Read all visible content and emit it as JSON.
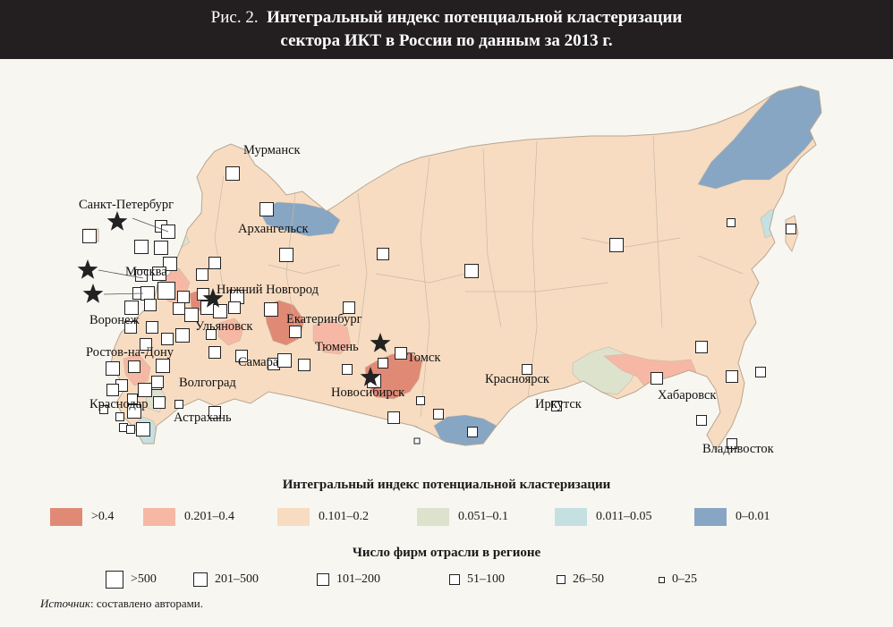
{
  "figure": {
    "prefix": "Рис. 2.",
    "title_line1": "Интегральный индекс потенциальной кластеризации",
    "title_line2": "сектора ИКТ в России по данным за 2013 г."
  },
  "map": {
    "cities": [
      {
        "name": "Мурманск",
        "star": false
      },
      {
        "name": "Санкт-Петербург",
        "star": true
      },
      {
        "name": "Архангельск",
        "star": false
      },
      {
        "name": "Москва",
        "star": true
      },
      {
        "name": "Нижний Новгород",
        "star": true
      },
      {
        "name": "Воронеж",
        "star": true
      },
      {
        "name": "Ульяновск",
        "star": false
      },
      {
        "name": "Екатеринбург",
        "star": false
      },
      {
        "name": "Ростов-на-Дону",
        "star": false
      },
      {
        "name": "Тюмень",
        "star": false
      },
      {
        "name": "Томск",
        "star": true
      },
      {
        "name": "Самара",
        "star": false
      },
      {
        "name": "Волгоград",
        "star": false
      },
      {
        "name": "Новосибирск",
        "star": true
      },
      {
        "name": "Красноярск",
        "star": false
      },
      {
        "name": "Хабаровск",
        "star": false
      },
      {
        "name": "Краснодар",
        "star": false
      },
      {
        "name": "Иркутск",
        "star": false
      },
      {
        "name": "Астрахань",
        "star": false
      },
      {
        "name": "Владивосток",
        "star": false
      }
    ]
  },
  "legend_index": {
    "title": "Интегральный индекс потенциальной кластеризации",
    "items": [
      {
        "label": ">0.4",
        "color": "#e08a76"
      },
      {
        "label": "0.201–0.4",
        "color": "#f6b8a4"
      },
      {
        "label": "0.101–0.2",
        "color": "#f7dcc2"
      },
      {
        "label": "0.051–0.1",
        "color": "#dde2cc"
      },
      {
        "label": "0.011–0.05",
        "color": "#c5e0e1"
      },
      {
        "label": "0–0.01",
        "color": "#86a6c4"
      }
    ]
  },
  "legend_firms": {
    "title": "Число фирм отрасли в регионе",
    "items": [
      {
        "label": ">500"
      },
      {
        "label": "201–500"
      },
      {
        "label": "101–200"
      },
      {
        "label": "51–100"
      },
      {
        "label": "26–50"
      },
      {
        "label": "0–25"
      }
    ]
  },
  "source": {
    "prefix": "Источник",
    "text": ": составлено авторами."
  }
}
